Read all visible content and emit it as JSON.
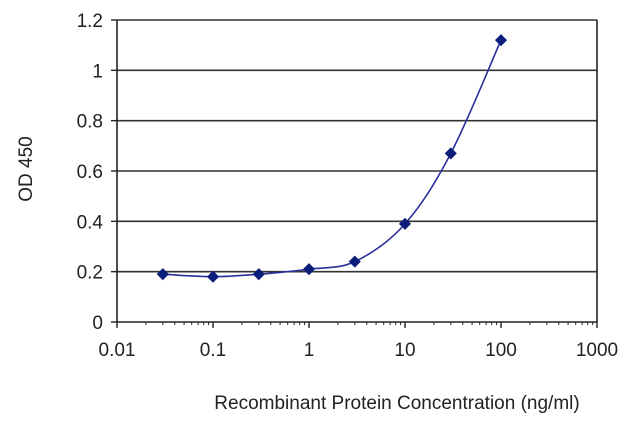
{
  "chart_data": {
    "type": "line",
    "title": "",
    "xlabel": "Recombinant Protein Concentration (ng/ml)",
    "ylabel": "OD 450",
    "x_scale": "log",
    "xlim": [
      0.01,
      1000
    ],
    "ylim": [
      0,
      1.2
    ],
    "x_ticks": [
      0.01,
      0.1,
      1,
      10,
      100,
      1000
    ],
    "x_tick_labels": [
      "0.01",
      "0.1",
      "1",
      "10",
      "100",
      "1000"
    ],
    "y_ticks": [
      0,
      0.2,
      0.4,
      0.6,
      0.8,
      1,
      1.2
    ],
    "y_tick_labels": [
      "0",
      "0.2",
      "0.4",
      "0.6",
      "0.8",
      "1",
      "1.2"
    ],
    "grid": "horizontal",
    "legend": "none",
    "colors": {
      "series": "#2b2f9a",
      "marker": "#0b1f7a",
      "grid": "#333333",
      "axis": "#222222"
    },
    "series": [
      {
        "x": [
          0.03,
          0.1,
          0.3,
          1,
          3,
          10,
          30,
          100
        ],
        "y": [
          0.19,
          0.18,
          0.19,
          0.21,
          0.24,
          0.39,
          0.67,
          1.12
        ]
      }
    ]
  }
}
